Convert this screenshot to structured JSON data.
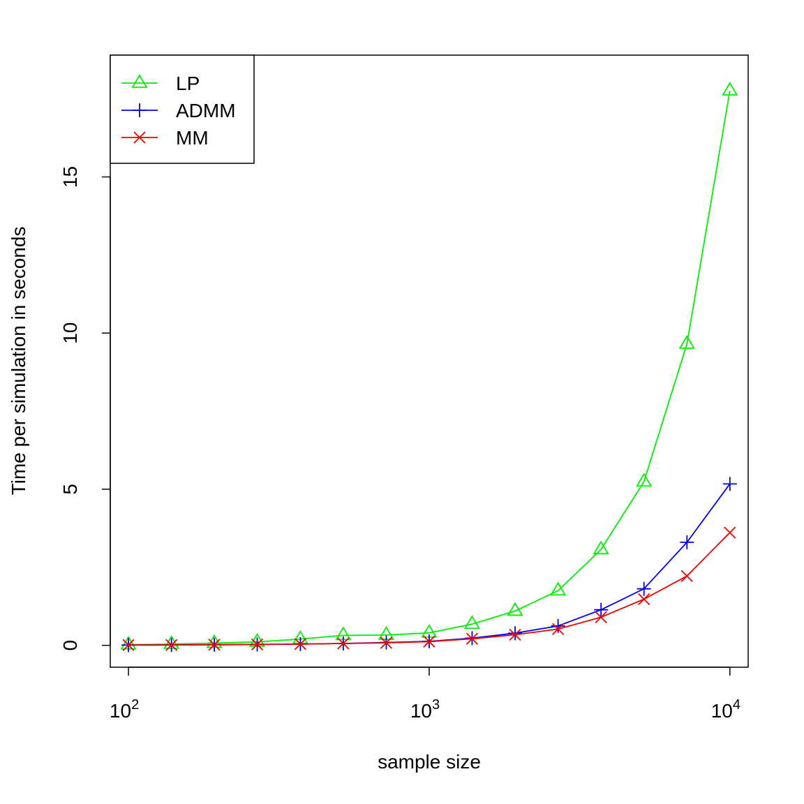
{
  "chart_data": {
    "type": "line",
    "title": "",
    "xlabel": "sample size",
    "ylabel": "Time per simulation in seconds",
    "x_scale": "log10",
    "xlim": [
      87,
      11500
    ],
    "ylim": [
      -0.7,
      18.9
    ],
    "x_ticks": [
      {
        "value": 100,
        "base": "10",
        "exp": "2"
      },
      {
        "value": 1000,
        "base": "10",
        "exp": "3"
      },
      {
        "value": 10000,
        "base": "10",
        "exp": "4"
      }
    ],
    "y_ticks": [
      0,
      5,
      10,
      15
    ],
    "x": [
      100,
      139,
      193,
      268,
      373,
      518,
      720,
      1000,
      1389,
      1931,
      2683,
      3728,
      5179,
      7197,
      10000
    ],
    "series": [
      {
        "name": "LP",
        "color": "#00ee00",
        "marker": "triangle",
        "values": [
          0.02,
          0.04,
          0.07,
          0.11,
          0.2,
          0.32,
          0.33,
          0.4,
          0.68,
          1.1,
          1.75,
          3.07,
          5.24,
          9.65,
          17.76
        ]
      },
      {
        "name": "ADMM",
        "color": "#0000ee",
        "marker": "plus",
        "values": [
          0.01,
          0.01,
          0.02,
          0.03,
          0.04,
          0.06,
          0.09,
          0.13,
          0.23,
          0.39,
          0.62,
          1.14,
          1.81,
          3.3,
          5.17
        ]
      },
      {
        "name": "MM",
        "color": "#ee0000",
        "marker": "cross",
        "values": [
          0.01,
          0.01,
          0.02,
          0.03,
          0.04,
          0.06,
          0.08,
          0.12,
          0.21,
          0.34,
          0.52,
          0.9,
          1.48,
          2.22,
          3.61
        ]
      }
    ],
    "legend_position": "top-left"
  }
}
